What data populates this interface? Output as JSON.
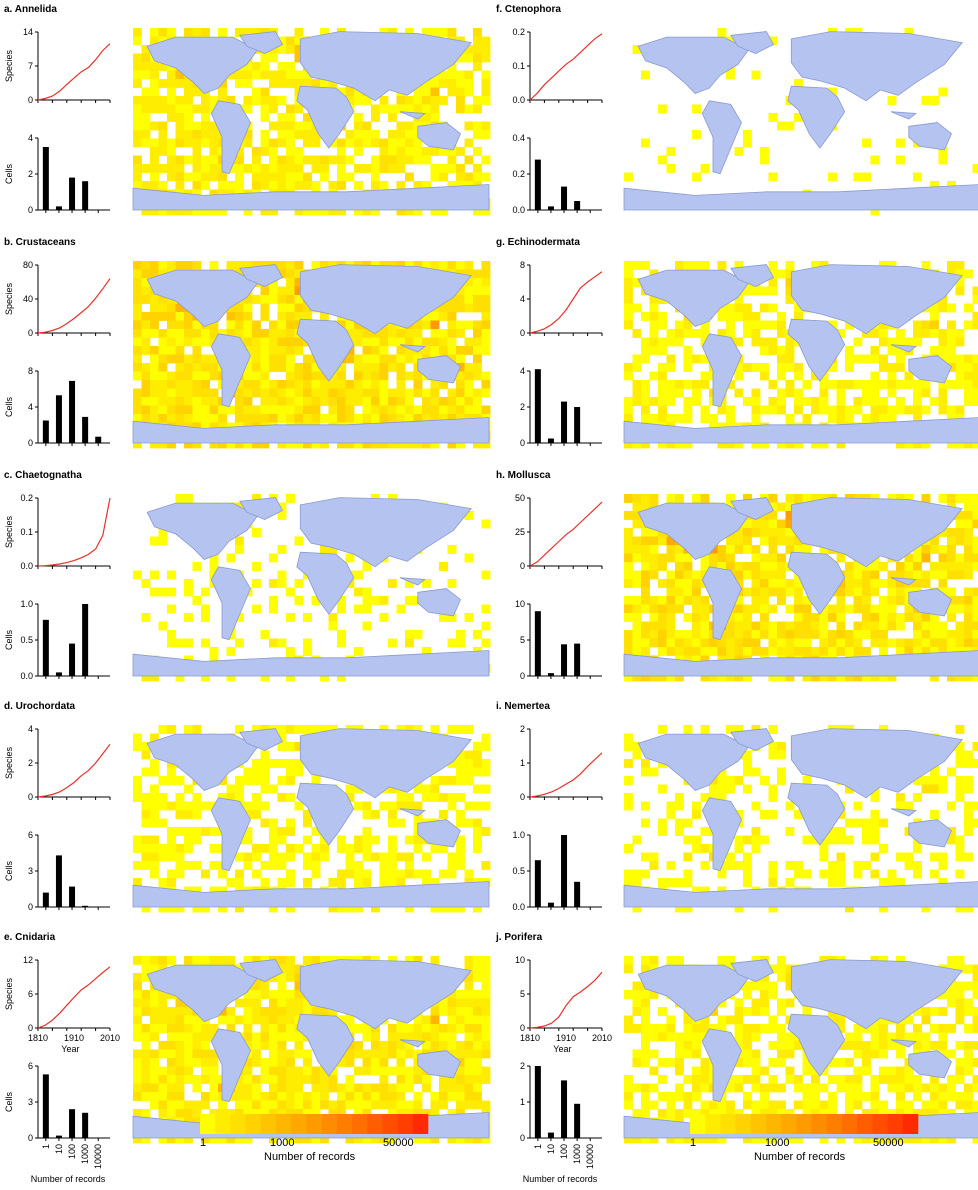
{
  "colors": {
    "curve": "#e8322a",
    "bar": "#000000",
    "land": "#b4c3f0",
    "coast": "#8a9ad0",
    "scale": [
      "#ffff00",
      "#ffed00",
      "#ffe000",
      "#ffd200",
      "#ffc400",
      "#ffb600",
      "#ffa800",
      "#ff9a00",
      "#ff8c00",
      "#ff7e00",
      "#ff6e00",
      "#ff5e00",
      "#ff4e00",
      "#ff3e00",
      "#ff2a00"
    ]
  },
  "legend": {
    "ticks": [
      "1",
      "1000",
      "50000"
    ],
    "label": "Number of records"
  },
  "chart_data": [
    {
      "id": "a",
      "type": "line+bar",
      "title": "a. Annelida",
      "line": {
        "ylabel": "Species",
        "ylim": [
          0,
          14
        ],
        "yticks": [
          "0",
          "7",
          "14"
        ],
        "x": [
          1810,
          1830,
          1850,
          1870,
          1890,
          1910,
          1930,
          1950,
          1970,
          1990,
          2010
        ],
        "y": [
          0,
          0.3,
          0.8,
          1.8,
          3.2,
          4.5,
          5.8,
          6.7,
          8.3,
          10.2,
          11.6
        ]
      },
      "bars": {
        "ylabel": "Cells",
        "ylim": [
          0,
          4
        ],
        "yticks": [
          "0",
          "2",
          "4"
        ],
        "categories": [
          "1",
          "10",
          "100",
          "1000",
          "10000"
        ],
        "values": [
          3.5,
          0.2,
          1.8,
          1.6,
          0
        ]
      }
    },
    {
      "id": "b",
      "type": "line+bar",
      "title": "b. Crustaceans",
      "line": {
        "ylabel": "Species",
        "ylim": [
          0,
          80
        ],
        "yticks": [
          "0",
          "40",
          "80"
        ],
        "x": [
          1810,
          1830,
          1850,
          1870,
          1890,
          1910,
          1930,
          1950,
          1970,
          1990,
          2010
        ],
        "y": [
          0,
          1,
          3,
          6,
          11,
          17,
          24,
          31,
          41,
          52,
          64
        ]
      },
      "bars": {
        "ylabel": "Cells",
        "ylim": [
          0,
          8
        ],
        "yticks": [
          "0",
          "4",
          "8"
        ],
        "categories": [
          "1",
          "10",
          "100",
          "1000",
          "10000"
        ],
        "values": [
          2.5,
          5.3,
          6.9,
          2.9,
          0.7
        ]
      }
    },
    {
      "id": "c",
      "type": "line+bar",
      "title": "c. Chaetognatha",
      "line": {
        "ylabel": "Species",
        "ylim": [
          0,
          0.2
        ],
        "yticks": [
          "0.0",
          "0.1",
          "0.2"
        ],
        "x": [
          1810,
          1830,
          1850,
          1870,
          1890,
          1910,
          1930,
          1950,
          1970,
          1990,
          2010
        ],
        "y": [
          0,
          0.001,
          0.003,
          0.006,
          0.01,
          0.016,
          0.024,
          0.034,
          0.05,
          0.09,
          0.2
        ]
      },
      "bars": {
        "ylabel": "Cells",
        "ylim": [
          0,
          1.0
        ],
        "yticks": [
          "0.0",
          "0.5",
          "1.0"
        ],
        "categories": [
          "1",
          "10",
          "100",
          "1000",
          "10000"
        ],
        "values": [
          0.78,
          0.05,
          0.45,
          1.0,
          0
        ]
      }
    },
    {
      "id": "d",
      "type": "line+bar",
      "title": "d. Urochordata",
      "line": {
        "ylabel": "Species",
        "ylim": [
          0,
          4
        ],
        "yticks": [
          "0",
          "2",
          "4"
        ],
        "x": [
          1810,
          1830,
          1850,
          1870,
          1890,
          1910,
          1930,
          1950,
          1970,
          1990,
          2010
        ],
        "y": [
          0,
          0.06,
          0.15,
          0.3,
          0.55,
          0.85,
          1.25,
          1.55,
          2.0,
          2.55,
          3.1
        ]
      },
      "bars": {
        "ylabel": "Cells",
        "ylim": [
          0,
          6
        ],
        "yticks": [
          "0",
          "3",
          "6"
        ],
        "categories": [
          "1",
          "10",
          "100",
          "1000",
          "10000"
        ],
        "values": [
          1.2,
          4.3,
          1.7,
          0.1,
          0
        ]
      }
    },
    {
      "id": "e",
      "type": "line+bar",
      "title": "e. Cnidaria",
      "line": {
        "ylabel": "Species",
        "ylim": [
          0,
          12
        ],
        "yticks": [
          "0",
          "6",
          "12"
        ],
        "xticks": [
          "1810",
          "1910",
          "2010"
        ],
        "xlabel": "Year",
        "x": [
          1810,
          1830,
          1850,
          1870,
          1890,
          1910,
          1930,
          1950,
          1970,
          1990,
          2010
        ],
        "y": [
          0,
          0.5,
          1.4,
          2.6,
          4.0,
          5.4,
          6.7,
          7.6,
          8.7,
          9.8,
          10.8
        ]
      },
      "bars": {
        "ylabel": "Cells",
        "ylim": [
          0,
          6
        ],
        "yticks": [
          "0",
          "3",
          "6"
        ],
        "xlabel": "Number of records",
        "categories": [
          "1",
          "10",
          "100",
          "1000",
          "10000"
        ],
        "values": [
          5.3,
          0.2,
          2.4,
          2.1,
          0
        ]
      }
    },
    {
      "id": "f",
      "type": "line+bar",
      "title": "f. Ctenophora",
      "line": {
        "ylabel": "",
        "ylim": [
          0,
          0.2
        ],
        "yticks": [
          "0.0",
          "0.1",
          "0.2"
        ],
        "x": [
          1810,
          1830,
          1850,
          1870,
          1890,
          1910,
          1930,
          1950,
          1970,
          1990,
          2010
        ],
        "y": [
          0,
          0.02,
          0.045,
          0.065,
          0.085,
          0.105,
          0.12,
          0.14,
          0.16,
          0.18,
          0.195
        ]
      },
      "bars": {
        "ylabel": "",
        "ylim": [
          0,
          0.4
        ],
        "yticks": [
          "0.0",
          "0.2",
          "0.4"
        ],
        "categories": [
          "1",
          "10",
          "100",
          "1000",
          "10000"
        ],
        "values": [
          0.28,
          0.02,
          0.13,
          0.05,
          0
        ]
      }
    },
    {
      "id": "g",
      "type": "line+bar",
      "title": "g. Echinodermata",
      "line": {
        "ylabel": "",
        "ylim": [
          0,
          8
        ],
        "yticks": [
          "0",
          "4",
          "8"
        ],
        "x": [
          1810,
          1830,
          1850,
          1870,
          1890,
          1910,
          1930,
          1950,
          1970,
          1990,
          2010
        ],
        "y": [
          0,
          0.2,
          0.5,
          1.0,
          1.7,
          2.7,
          4.0,
          5.3,
          6.0,
          6.6,
          7.2
        ]
      },
      "bars": {
        "ylabel": "",
        "ylim": [
          0,
          4
        ],
        "yticks": [
          "0",
          "2",
          "4"
        ],
        "categories": [
          "1",
          "10",
          "100",
          "1000",
          "10000"
        ],
        "values": [
          4.1,
          0.25,
          2.3,
          2.0,
          0
        ]
      }
    },
    {
      "id": "h",
      "type": "line+bar",
      "title": "h. Mollusca",
      "line": {
        "ylabel": "",
        "ylim": [
          0,
          50
        ],
        "yticks": [
          "0",
          "25",
          "50"
        ],
        "x": [
          1810,
          1830,
          1850,
          1870,
          1890,
          1910,
          1930,
          1950,
          1970,
          1990,
          2010
        ],
        "y": [
          0,
          3,
          8,
          13,
          18,
          23,
          27,
          32,
          37,
          42,
          47
        ]
      },
      "bars": {
        "ylabel": "",
        "ylim": [
          0,
          10
        ],
        "yticks": [
          "0",
          "5",
          "10"
        ],
        "categories": [
          "1",
          "10",
          "100",
          "1000",
          "10000"
        ],
        "values": [
          9.0,
          0.4,
          4.4,
          4.5,
          0
        ]
      }
    },
    {
      "id": "i",
      "type": "line+bar",
      "title": "i. Nemertea",
      "line": {
        "ylabel": "",
        "ylim": [
          0,
          2
        ],
        "yticks": [
          "0",
          "1",
          "2"
        ],
        "x": [
          1810,
          1830,
          1850,
          1870,
          1890,
          1910,
          1930,
          1950,
          1970,
          1990,
          2010
        ],
        "y": [
          0,
          0.03,
          0.08,
          0.15,
          0.25,
          0.38,
          0.5,
          0.68,
          0.9,
          1.1,
          1.3
        ]
      },
      "bars": {
        "ylabel": "",
        "ylim": [
          0,
          1.0
        ],
        "yticks": [
          "0.0",
          "0.5",
          "1.0"
        ],
        "categories": [
          "1",
          "10",
          "100",
          "1000",
          "10000"
        ],
        "values": [
          0.65,
          0.06,
          1.0,
          0.35,
          0
        ]
      }
    },
    {
      "id": "j",
      "type": "line+bar",
      "title": "j. Porifera",
      "line": {
        "ylabel": "",
        "ylim": [
          0,
          10
        ],
        "yticks": [
          "0",
          "5",
          "10"
        ],
        "xticks": [
          "1810",
          "1910",
          "2010"
        ],
        "xlabel": "Year",
        "x": [
          1810,
          1830,
          1850,
          1870,
          1890,
          1910,
          1930,
          1950,
          1970,
          1990,
          2010
        ],
        "y": [
          0,
          0.1,
          0.3,
          0.7,
          1.6,
          3.3,
          4.6,
          5.3,
          6.1,
          7.0,
          8.2
        ]
      },
      "bars": {
        "ylabel": "",
        "ylim": [
          0,
          2
        ],
        "yticks": [
          "0",
          "1",
          "2"
        ],
        "xlabel": "Number of records",
        "categories": [
          "1",
          "10",
          "100",
          "1000",
          "10000"
        ],
        "values": [
          2.0,
          0.15,
          1.6,
          0.95,
          0
        ]
      }
    }
  ]
}
